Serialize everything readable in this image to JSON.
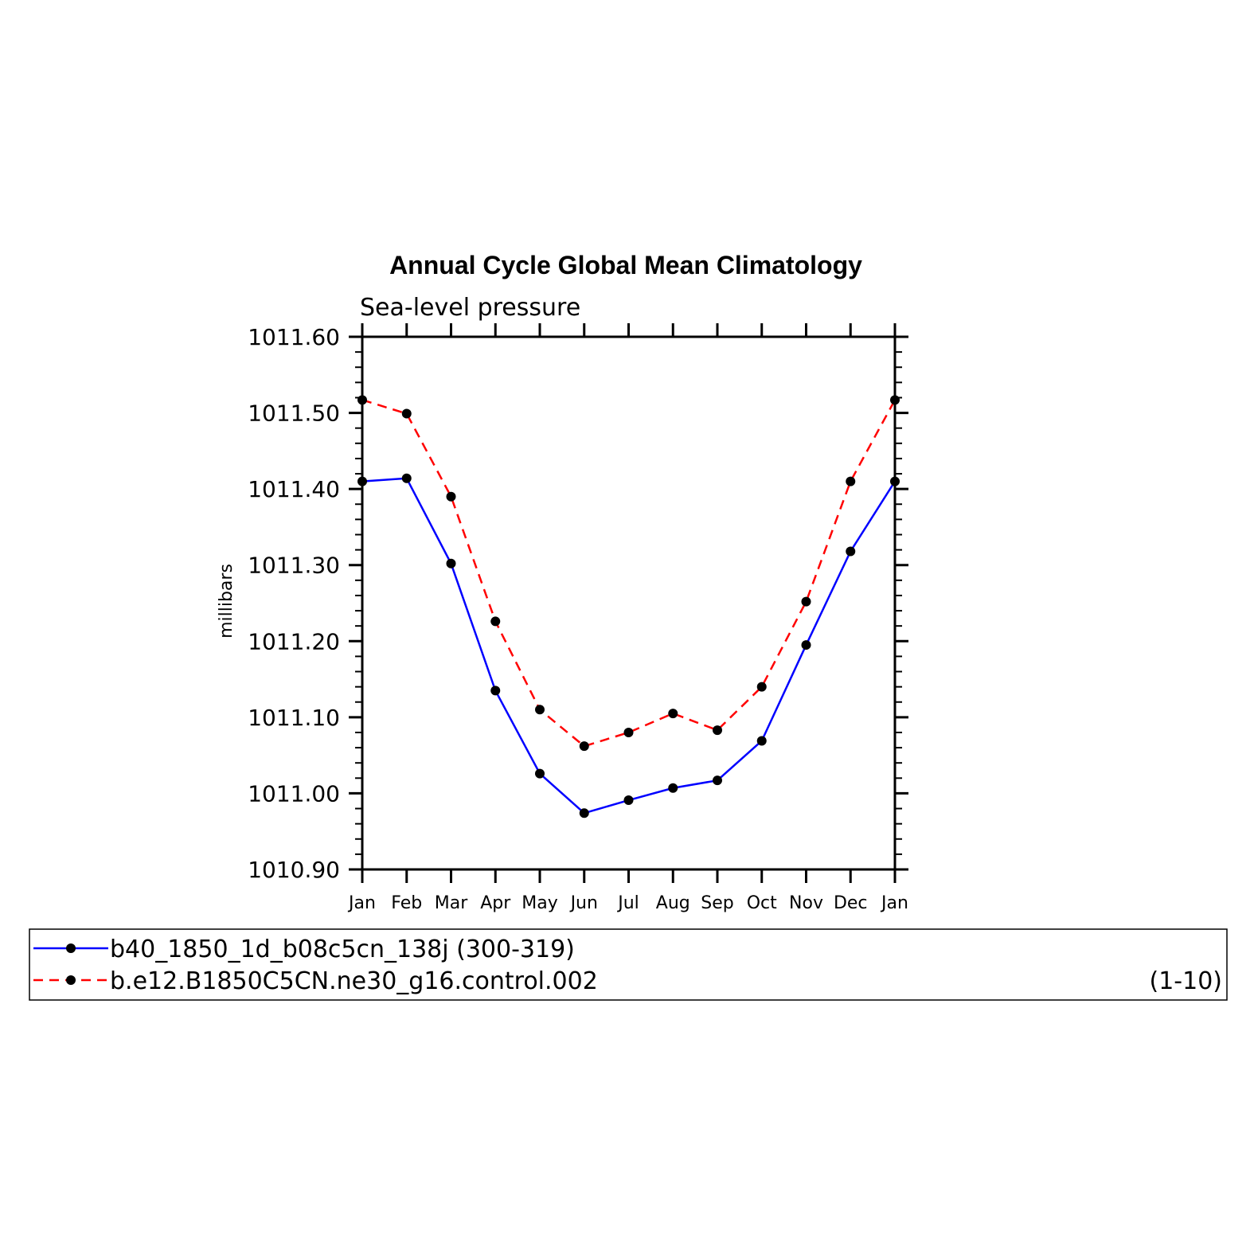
{
  "chart_data": {
    "type": "line",
    "title": "Annual Cycle Global Mean Climatology",
    "subtitle": "Sea-level pressure",
    "ylabel": "millibars",
    "xlabel": "",
    "categories": [
      "Jan",
      "Feb",
      "Mar",
      "Apr",
      "May",
      "Jun",
      "Jul",
      "Aug",
      "Sep",
      "Oct",
      "Nov",
      "Dec",
      "Jan"
    ],
    "ylim": [
      1010.9,
      1011.6
    ],
    "yticks": [
      "1010.90",
      "1011.00",
      "1011.10",
      "1011.20",
      "1011.30",
      "1011.40",
      "1011.50",
      "1011.60"
    ],
    "grid": false,
    "legend_position": "bottom",
    "series": [
      {
        "name": "b40_1850_1d_b08c5cn_138j (300-319)",
        "color": "#0000ff",
        "dash": "solid",
        "marker": "filled-circle",
        "values": [
          1011.41,
          1011.414,
          1011.302,
          1011.135,
          1011.026,
          1010.974,
          1010.991,
          1011.007,
          1011.017,
          1011.069,
          1011.195,
          1011.318,
          1011.41
        ]
      },
      {
        "name": "b.e12.B1850C5CN.ne30_g16.control.002",
        "suffix": "(1-10)",
        "color": "#ff0000",
        "dash": "dashed",
        "marker": "filled-circle",
        "values": [
          1011.517,
          1011.499,
          1011.39,
          1011.226,
          1011.11,
          1011.062,
          1011.08,
          1011.105,
          1011.083,
          1011.14,
          1011.252,
          1011.41,
          1011.517
        ]
      }
    ]
  }
}
